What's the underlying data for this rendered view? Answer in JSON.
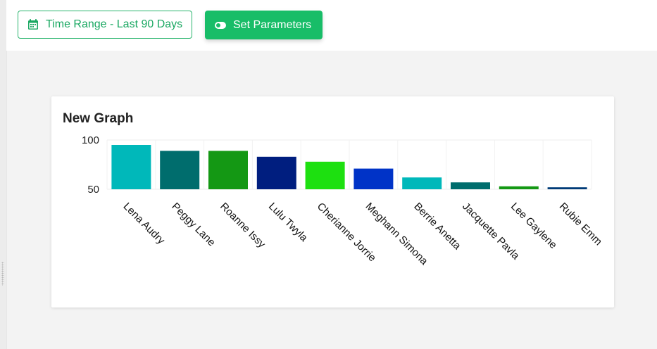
{
  "toolbar": {
    "time_range_label": "Time Range - Last 90 Days",
    "time_range_icon": "calendar-icon",
    "set_params_label": "Set Parameters",
    "set_params_icon": "toggle-icon"
  },
  "colors": {
    "accent": "#18bd68",
    "accent_text": "#1aa862"
  },
  "card": {
    "title": "New Graph"
  },
  "chart_data": {
    "type": "bar",
    "title": "New Graph",
    "xlabel": "",
    "ylabel": "",
    "ylim": [
      50,
      100
    ],
    "yticks": [
      50,
      100
    ],
    "grid": true,
    "categories": [
      "Lena Audry",
      "Peggy Lane",
      "Roanne Issy",
      "Lulu Twyla",
      "Cherianne Jorrie",
      "Meghann Simona",
      "Berrie Anetta",
      "Jacquette Pavla",
      "Lee Gaylene",
      "Rubie Emm"
    ],
    "values": [
      95,
      89,
      89,
      83,
      78,
      71,
      62,
      57,
      53,
      52
    ],
    "bar_colors": [
      "#00b8ba",
      "#006d6d",
      "#149814",
      "#001e7f",
      "#1de010",
      "#0033c7",
      "#00b8ba",
      "#006d6d",
      "#149814",
      "#003b78"
    ]
  }
}
